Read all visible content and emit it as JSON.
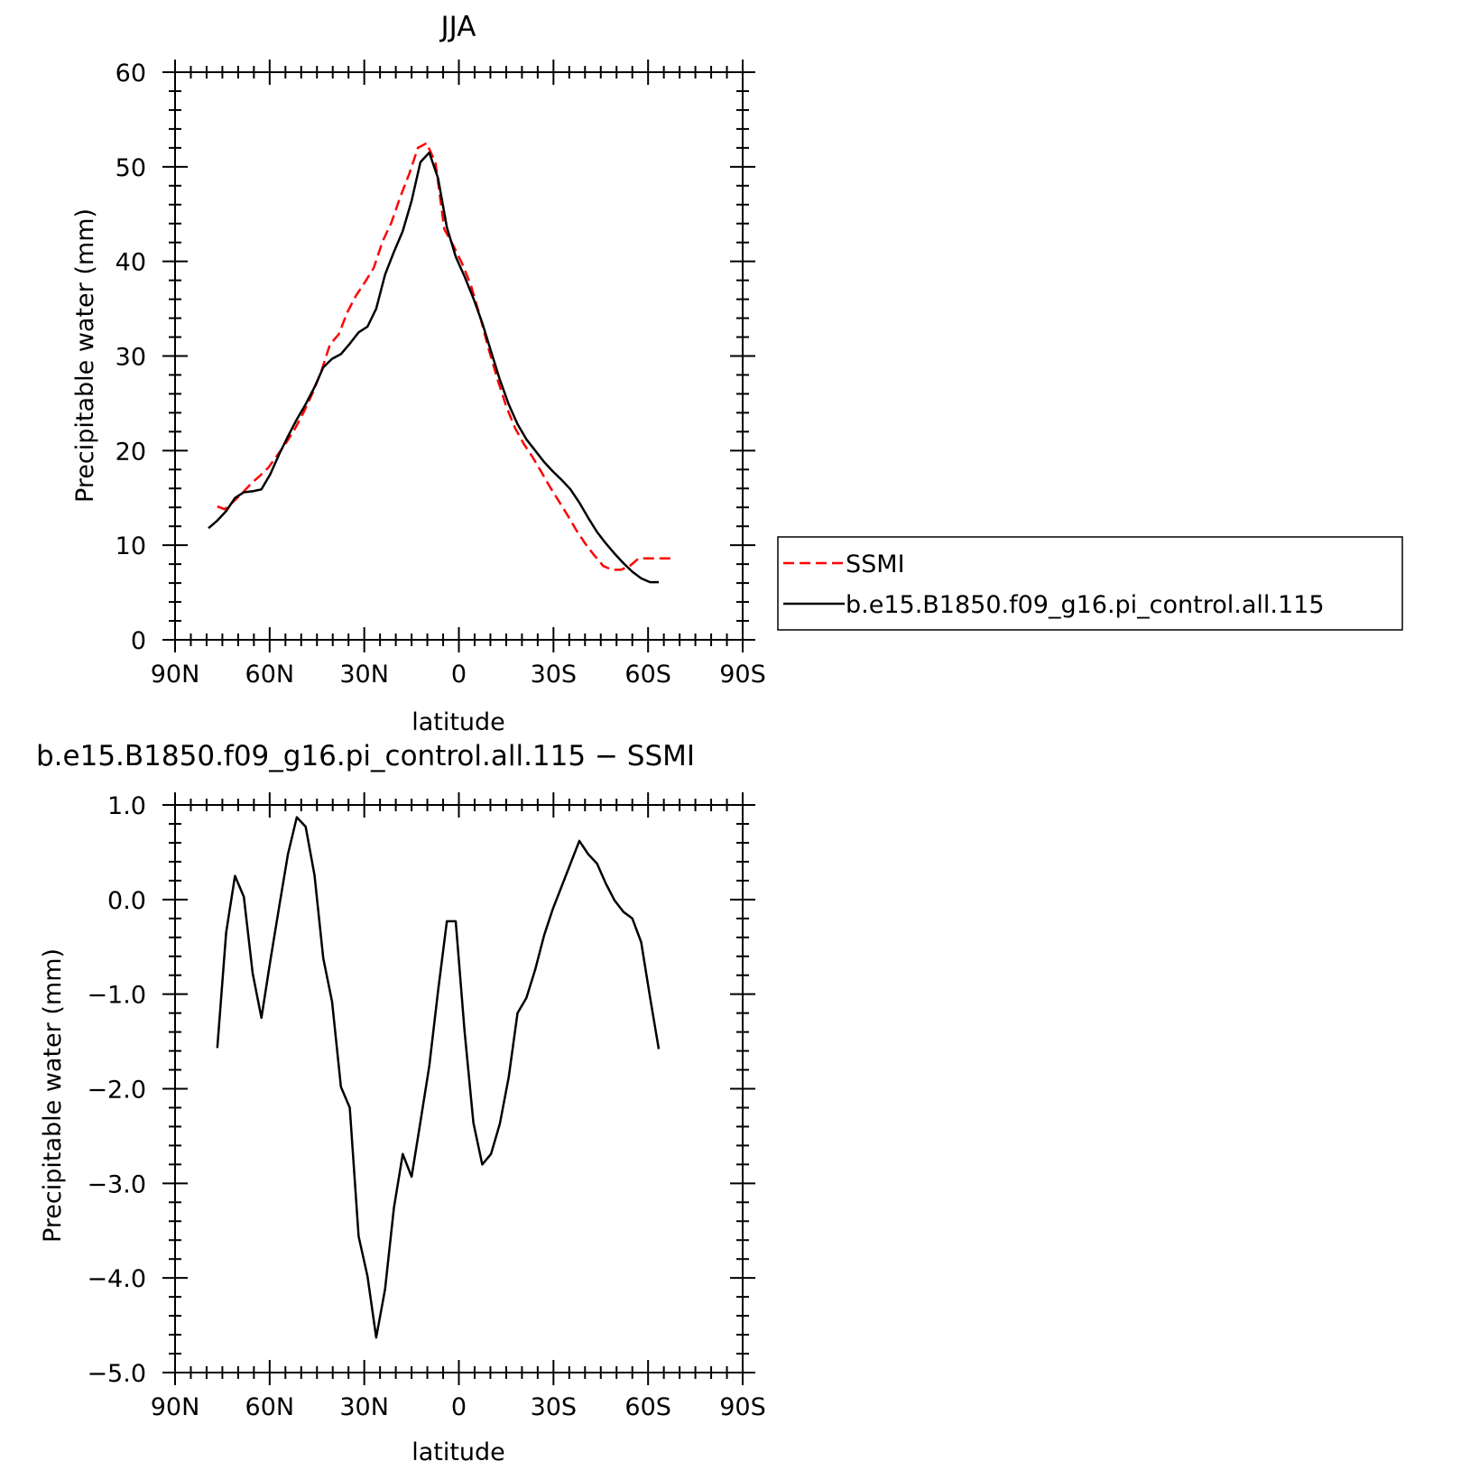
{
  "colors": {
    "ssmi": "#ff0000",
    "model": "#000000"
  },
  "chart_data": [
    {
      "type": "line",
      "title": "JJA",
      "xlabel": "latitude",
      "ylabel": "Precipitable water (mm)",
      "xlim": [
        90,
        -90
      ],
      "ylim": [
        0,
        60
      ],
      "x_ticks": [
        90,
        60,
        30,
        0,
        -30,
        -60,
        -90
      ],
      "x_tick_labels": [
        "90N",
        "60N",
        "30N",
        "0",
        "30S",
        "60S",
        "90S"
      ],
      "y_ticks": [
        0,
        10,
        20,
        30,
        40,
        50,
        60
      ],
      "y_tick_labels": [
        "0",
        "10",
        "20",
        "30",
        "40",
        "50",
        "60"
      ],
      "legend": {
        "placement": "right",
        "entries": [
          "SSMI",
          "b.e15.B1850.f09_g16.pi_control.all.115"
        ]
      },
      "series": [
        {
          "name": "SSMI",
          "style": "dashed",
          "x": [
            76.6,
            74.3,
            71.5,
            68.7,
            65.9,
            63.2,
            60.4,
            57.6,
            54.8,
            52,
            49.3,
            46.5,
            43.7,
            40.9,
            38.1,
            35.4,
            32.6,
            29.8,
            27,
            24.2,
            21.4,
            18.6,
            15.8,
            13,
            10.2,
            7.4,
            4.6,
            1.8,
            -1,
            -3.8,
            -6.6,
            -9.4,
            -12.2,
            -15,
            -17.8,
            -20.6,
            -23.4,
            -26.2,
            -29,
            -31.8,
            -34.6,
            -37.4,
            -40.2,
            -43,
            -45.8,
            -48.6,
            -51.4,
            -54.2,
            -57,
            -59.8,
            -62.6,
            -65.4,
            -68.2
          ],
          "y": [
            14.1,
            13.8,
            14.6,
            15.5,
            16.5,
            17.3,
            18.2,
            19.5,
            20.8,
            22.3,
            24,
            26,
            28.3,
            31.2,
            32.3,
            34.6,
            36.4,
            37.8,
            39.3,
            42.1,
            44.1,
            46.8,
            49.2,
            52,
            52.5,
            50.4,
            43.4,
            41.7,
            39.8,
            37.5,
            34.3,
            30.8,
            27.6,
            24.7,
            22.4,
            20.7,
            19.3,
            17.7,
            16.1,
            14.6,
            13.1,
            11.5,
            10.1,
            8.9,
            7.8,
            7.4,
            7.4,
            7.8,
            8.6,
            8.6,
            8.6,
            8.6,
            8.6
          ]
        },
        {
          "name": "b.e15.B1850.f09_g16.pi_control.all.115",
          "style": "solid",
          "x": [
            79.4,
            76.6,
            73.8,
            71,
            68.2,
            65.4,
            62.6,
            59.8,
            57,
            54.2,
            51.4,
            48.6,
            45.8,
            43,
            40.2,
            37.4,
            34.6,
            31.8,
            29,
            26.2,
            23.4,
            20.6,
            17.8,
            15,
            12.2,
            9.4,
            6.6,
            3.8,
            1,
            -1.8,
            -4.6,
            -7.4,
            -10.2,
            -13,
            -15.8,
            -18.6,
            -21.4,
            -24.2,
            -27,
            -29.8,
            -32.6,
            -35.4,
            -38.2,
            -41,
            -43.8,
            -46.6,
            -49.4,
            -52.2,
            -55,
            -57.8,
            -60.6,
            -63.4
          ],
          "y": [
            11.8,
            12.6,
            13.6,
            15,
            15.6,
            15.7,
            15.9,
            17.5,
            19.6,
            21.5,
            23.3,
            24.9,
            26.7,
            28.8,
            29.7,
            30.2,
            31.3,
            32.5,
            33.1,
            35,
            38.6,
            41,
            43.2,
            46.4,
            50.5,
            51.5,
            48.8,
            43.6,
            40.5,
            38.4,
            36.1,
            33.5,
            30.5,
            27.5,
            24.9,
            22.8,
            21.2,
            20,
            18.8,
            17.8,
            16.9,
            15.9,
            14.5,
            12.9,
            11.4,
            10.2,
            9.1,
            8.1,
            7.2,
            6.5,
            6.1,
            6.1
          ]
        }
      ]
    },
    {
      "type": "line",
      "title": "b.e15.B1850.f09_g16.pi_control.all.115 − SSMI",
      "xlabel": "latitude",
      "ylabel": "Precipitable water (mm)",
      "xlim": [
        90,
        -90
      ],
      "ylim": [
        -5,
        1
      ],
      "x_ticks": [
        90,
        60,
        30,
        0,
        -30,
        -60,
        -90
      ],
      "x_tick_labels": [
        "90N",
        "60N",
        "30N",
        "0",
        "30S",
        "60S",
        "90S"
      ],
      "y_ticks": [
        1,
        0,
        -1,
        -2,
        -3,
        -4,
        -5
      ],
      "y_tick_labels": [
        "1.0",
        "0.0",
        "−1.0",
        "−2.0",
        "−3.0",
        "−4.0",
        "−5.0"
      ],
      "series": [
        {
          "style": "solid",
          "x": [
            76.6,
            73.8,
            71,
            68.2,
            65.4,
            62.6,
            59.8,
            57,
            54.2,
            51.4,
            48.6,
            45.8,
            43,
            40.2,
            37.4,
            34.6,
            31.8,
            29,
            26.2,
            23.4,
            20.6,
            17.8,
            15,
            12.2,
            9.4,
            6.6,
            3.8,
            1,
            -1.8,
            -4.6,
            -7.4,
            -10.2,
            -13,
            -15.8,
            -18.6,
            -21.4,
            -24.2,
            -27,
            -29.8,
            -32.6,
            -35.4,
            -38.2,
            -41,
            -43.8,
            -46.6,
            -49.4,
            -52.2,
            -55,
            -57.8,
            -60.6,
            -63.4
          ],
          "y": [
            -1.57,
            -0.35,
            0.25,
            0.03,
            -0.78,
            -1.25,
            -0.65,
            -0.08,
            0.48,
            0.87,
            0.77,
            0.26,
            -0.62,
            -1.08,
            -1.98,
            -2.2,
            -3.56,
            -3.98,
            -4.63,
            -4.12,
            -3.26,
            -2.69,
            -2.93,
            -2.35,
            -1.76,
            -0.97,
            -0.23,
            -0.23,
            -1.39,
            -2.36,
            -2.8,
            -2.69,
            -2.37,
            -1.88,
            -1.2,
            -1.04,
            -0.74,
            -0.38,
            -0.1,
            0.14,
            0.38,
            0.62,
            0.48,
            0.38,
            0.17,
            -0.01,
            -0.13,
            -0.2,
            -0.45,
            -1.03,
            -1.58
          ]
        }
      ]
    }
  ]
}
